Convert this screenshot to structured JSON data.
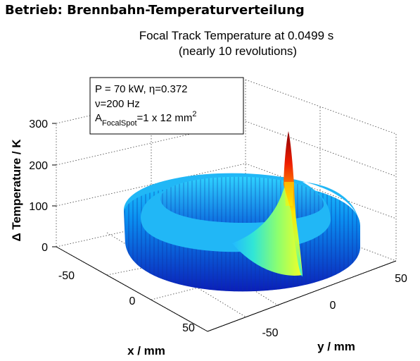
{
  "page_heading": "Betrieb: Brennbahn-Temperaturverteilung",
  "chart_data": {
    "type": "surface",
    "title": "Focal Track Temperature at 0.0499 s",
    "subtitle": "(nearly 10 revolutions)",
    "xlabel": "x / mm",
    "ylabel": "y / mm",
    "zlabel": "Δ Temperature  / K",
    "x_ticks": [
      "-50",
      "0",
      "50"
    ],
    "y_ticks": [
      "-50",
      "0",
      "50"
    ],
    "z_ticks": [
      "0",
      "100",
      "200",
      "300"
    ],
    "zlim": [
      0,
      300
    ],
    "track_radius_mm": 50,
    "baseline_temperature_rise_K": 70,
    "peak_temperature_rise_K": 320,
    "grid": "on",
    "colormap": "jet",
    "annotation": {
      "line1_prefix": "P = 70 kW, ",
      "eta_symbol": "η",
      "eta_value": "=0.372",
      "nu_symbol": "ν",
      "nu_value": "=200 Hz",
      "a_main": "A",
      "a_sub": "FocalSpot",
      "a_value": "=1 x 12 mm",
      "a_exp": "2"
    }
  }
}
